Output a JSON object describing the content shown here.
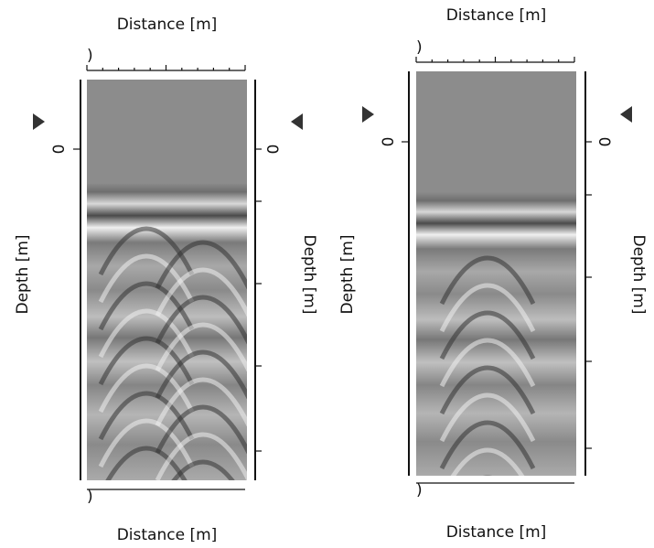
{
  "panels": [
    {
      "top_label": "Distance [m]",
      "bottom_label": "Distance [m]",
      "left_label": "Depth [m]",
      "right_label": "Depth [m]",
      "left_zero": "0",
      "right_zero": "0",
      "top_tick": ")",
      "bottom_tick": ")"
    },
    {
      "top_label": "Distance [m]",
      "bottom_label": "Distance [m]",
      "left_label": "Depth [m]",
      "right_label": "Depth [m]",
      "left_zero": "0",
      "right_zero": "0",
      "top_tick": ")",
      "bottom_tick": ")"
    }
  ]
}
